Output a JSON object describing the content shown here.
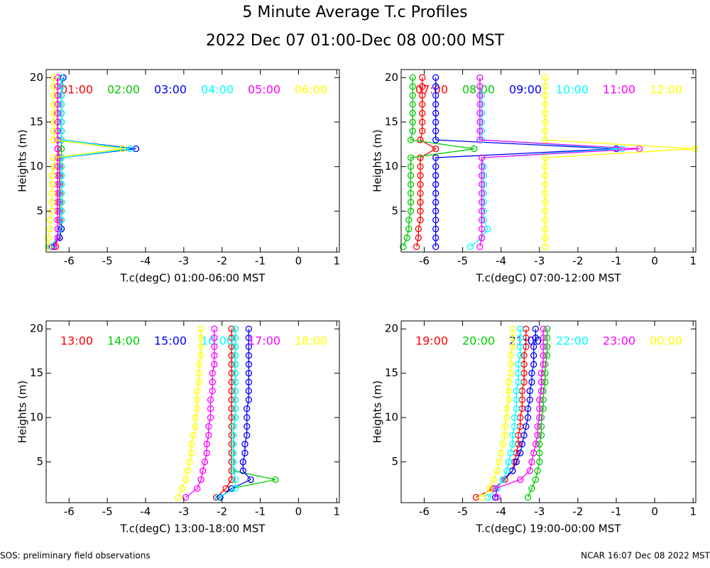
{
  "title": "5 Minute Average T.c Profiles",
  "subtitle": "2022 Dec 07 01:00-Dec 08 00:00 MST",
  "footer_left": "SOS: preliminary field observations",
  "footer_right": "NCAR 16:07 Dec 08 2022 MST",
  "chart_data": [
    {
      "type": "line",
      "xlabel": "T.c(degC) 01:00-06:00 MST",
      "ylabel": "Heights (m)",
      "xlim": [
        -6.6,
        1.07
      ],
      "ylim": [
        0.4,
        20.9
      ],
      "xticks": [
        -6,
        -5,
        -4,
        -3,
        -2,
        -1,
        0,
        1
      ],
      "yticks": [
        5,
        10,
        15,
        20
      ],
      "y": [
        1,
        2,
        3,
        4,
        5,
        6,
        7,
        8,
        9,
        10,
        11,
        12,
        13,
        14,
        15,
        16,
        17,
        18,
        19,
        20
      ],
      "series": [
        {
          "name": "01:00",
          "color": "#ff0000",
          "values": [
            -6.35,
            -6.3,
            -6.25,
            -6.25,
            -6.25,
            -6.25,
            -6.25,
            -6.25,
            -6.25,
            -6.25,
            -6.25,
            -6.3,
            -6.3,
            -6.3,
            -6.3,
            -6.3,
            -6.3,
            -6.3,
            -6.3,
            -6.3
          ]
        },
        {
          "name": "02:00",
          "color": "#00cc00",
          "values": [
            -6.5,
            -6.25,
            -6.2,
            -6.2,
            -6.2,
            -6.2,
            -6.2,
            -6.2,
            -6.2,
            -6.2,
            -6.2,
            -6.2,
            -6.2,
            -6.2,
            -6.2,
            -6.2,
            -6.2,
            -6.2,
            -6.2,
            -6.2
          ]
        },
        {
          "name": "03:00",
          "color": "#0000ff",
          "values": [
            -6.45,
            -6.25,
            -6.2,
            -6.2,
            -6.2,
            -6.2,
            -6.2,
            -6.2,
            -6.2,
            -6.2,
            -6.2,
            -4.25,
            -6.2,
            -6.2,
            -6.2,
            -6.2,
            -6.2,
            -6.2,
            -6.2,
            -6.15
          ]
        },
        {
          "name": "04:00",
          "color": "#00ffff",
          "values": [
            -6.5,
            -6.3,
            -6.25,
            -6.2,
            -6.2,
            -6.2,
            -6.2,
            -6.2,
            -6.2,
            -6.2,
            -6.2,
            -4.4,
            -6.2,
            -6.2,
            -6.2,
            -6.2,
            -6.2,
            -6.2,
            -6.2,
            -6.2
          ]
        },
        {
          "name": "05:00",
          "color": "#ff00ff",
          "values": [
            -6.4,
            -6.3,
            -6.3,
            -6.3,
            -6.3,
            -6.3,
            -6.3,
            -6.3,
            -6.3,
            -6.3,
            -6.3,
            -6.3,
            -6.3,
            -6.3,
            -6.3,
            -6.3,
            -6.3,
            -6.3,
            -6.3,
            -6.3
          ]
        },
        {
          "name": "06:00",
          "color": "#ffff00",
          "values": [
            -6.55,
            -6.55,
            -6.5,
            -6.5,
            -6.45,
            -6.45,
            -6.45,
            -6.45,
            -6.45,
            -6.4,
            -6.4,
            -4.6,
            -6.4,
            -6.4,
            -6.4,
            -6.4,
            -6.4,
            -6.4,
            -6.4,
            -6.4
          ]
        }
      ]
    },
    {
      "type": "line",
      "xlabel": "T.c(degC) 07:00-12:00 MST",
      "ylabel": "Heights (m)",
      "xlim": [
        -6.6,
        1.07
      ],
      "ylim": [
        0.4,
        20.9
      ],
      "xticks": [
        -6,
        -5,
        -4,
        -3,
        -2,
        -1,
        0,
        1
      ],
      "yticks": [
        5,
        10,
        15,
        20
      ],
      "y": [
        1,
        2,
        3,
        4,
        5,
        6,
        7,
        8,
        9,
        10,
        11,
        12,
        13,
        14,
        15,
        16,
        17,
        18,
        19,
        20
      ],
      "series": [
        {
          "name": "07:00",
          "color": "#ff0000",
          "values": [
            -6.2,
            -6.15,
            -6.15,
            -6.1,
            -6.1,
            -6.1,
            -6.1,
            -6.1,
            -6.1,
            -6.1,
            -6.1,
            -5.7,
            -6.1,
            -6.05,
            -6.05,
            -6.05,
            -6.05,
            -6.05,
            -6.05,
            -6.05
          ]
        },
        {
          "name": "08:00",
          "color": "#00cc00",
          "values": [
            -6.55,
            -6.45,
            -6.4,
            -6.4,
            -6.35,
            -6.35,
            -6.35,
            -6.35,
            -6.35,
            -6.35,
            -6.35,
            -4.7,
            -6.35,
            -6.3,
            -6.3,
            -6.3,
            -6.3,
            -6.3,
            -6.3,
            -6.3
          ]
        },
        {
          "name": "09:00",
          "color": "#0000ff",
          "values": [
            -5.7,
            -5.7,
            -5.7,
            -5.7,
            -5.7,
            -5.7,
            -5.7,
            -5.7,
            -5.7,
            -5.7,
            -5.7,
            -1.0,
            -5.7,
            -5.7,
            -5.7,
            -5.7,
            -5.7,
            -5.7,
            -5.7,
            -5.7
          ]
        },
        {
          "name": "10:00",
          "color": "#00ffff",
          "values": [
            -4.8,
            -4.5,
            -4.35,
            -4.45,
            -4.45,
            -4.45,
            -4.45,
            -4.45,
            -4.45,
            -4.45,
            -4.5,
            -0.85,
            -4.5,
            -4.5,
            -4.5,
            -4.5,
            -4.5,
            -4.5,
            -4.55,
            -4.55
          ]
        },
        {
          "name": "11:00",
          "color": "#ff00ff",
          "values": [
            -4.55,
            -4.5,
            -4.5,
            -4.5,
            -4.5,
            -4.5,
            -4.5,
            -4.5,
            -4.5,
            -4.5,
            -4.5,
            -0.4,
            -4.55,
            -4.55,
            -4.55,
            -4.55,
            -4.55,
            -4.55,
            -4.55,
            -4.55
          ]
        },
        {
          "name": "12:00",
          "color": "#ffff00",
          "values": [
            -2.85,
            -2.85,
            -2.85,
            -2.85,
            -2.85,
            -2.85,
            -2.85,
            -2.85,
            -2.85,
            -2.85,
            -2.85,
            1.05,
            -2.85,
            -2.85,
            -2.85,
            -2.85,
            -2.85,
            -2.85,
            -2.85,
            -2.85
          ]
        }
      ]
    },
    {
      "type": "line",
      "xlabel": "T.c(degC) 13:00-18:00 MST",
      "ylabel": "Heights (m)",
      "xlim": [
        -6.6,
        1.07
      ],
      "ylim": [
        0.4,
        20.9
      ],
      "xticks": [
        -6,
        -5,
        -4,
        -3,
        -2,
        -1,
        0,
        1
      ],
      "yticks": [
        5,
        10,
        15,
        20
      ],
      "y": [
        1,
        2,
        3,
        4,
        5,
        6,
        7,
        8,
        9,
        10,
        11,
        12,
        13,
        14,
        15,
        16,
        17,
        18,
        19,
        20
      ],
      "series": [
        {
          "name": "13:00",
          "color": "#ff0000",
          "values": [
            -2.15,
            -1.9,
            -1.75,
            -1.75,
            -1.75,
            -1.75,
            -1.75,
            -1.75,
            -1.75,
            -1.75,
            -1.75,
            -1.75,
            -1.75,
            -1.75,
            -1.75,
            -1.75,
            -1.75,
            -1.75,
            -1.75,
            -1.75
          ]
        },
        {
          "name": "14:00",
          "color": "#00cc00",
          "values": [
            -2.05,
            -1.75,
            -0.6,
            -1.7,
            -1.7,
            -1.7,
            -1.7,
            -1.7,
            -1.7,
            -1.65,
            -1.65,
            -1.65,
            -1.65,
            -1.65,
            -1.65,
            -1.65,
            -1.65,
            -1.65,
            -1.65,
            -1.65
          ]
        },
        {
          "name": "15:00",
          "color": "#0000ff",
          "values": [
            -2.05,
            -1.75,
            -1.25,
            -1.45,
            -1.45,
            -1.4,
            -1.4,
            -1.35,
            -1.35,
            -1.35,
            -1.35,
            -1.3,
            -1.3,
            -1.3,
            -1.3,
            -1.3,
            -1.3,
            -1.3,
            -1.3,
            -1.3
          ]
        },
        {
          "name": "16:00",
          "color": "#00ffff",
          "values": [
            -2.1,
            -1.65,
            -1.65,
            -1.7,
            -1.7,
            -1.7,
            -1.7,
            -1.7,
            -1.7,
            -1.65,
            -1.65,
            -1.65,
            -1.65,
            -1.65,
            -1.65,
            -1.65,
            -1.65,
            -1.65,
            -1.65,
            -1.65
          ]
        },
        {
          "name": "17:00",
          "color": "#ff00ff",
          "values": [
            -2.95,
            -2.65,
            -2.55,
            -2.5,
            -2.45,
            -2.4,
            -2.4,
            -2.35,
            -2.35,
            -2.3,
            -2.3,
            -2.3,
            -2.25,
            -2.25,
            -2.25,
            -2.2,
            -2.2,
            -2.2,
            -2.2,
            -2.2
          ]
        },
        {
          "name": "18:00",
          "color": "#ffff00",
          "values": [
            -3.15,
            -3.05,
            -2.95,
            -2.9,
            -2.85,
            -2.8,
            -2.8,
            -2.75,
            -2.7,
            -2.7,
            -2.65,
            -2.65,
            -2.65,
            -2.6,
            -2.6,
            -2.6,
            -2.55,
            -2.55,
            -2.55,
            -2.55
          ]
        }
      ]
    },
    {
      "type": "line",
      "xlabel": "T.c(degC) 19:00-00:00 MST",
      "ylabel": "Heights (m)",
      "xlim": [
        -6.6,
        1.07
      ],
      "ylim": [
        0.4,
        20.9
      ],
      "xticks": [
        -6,
        -5,
        -4,
        -3,
        -2,
        -1,
        0,
        1
      ],
      "yticks": [
        5,
        10,
        15,
        20
      ],
      "y": [
        1,
        2,
        3,
        4,
        5,
        6,
        7,
        8,
        9,
        10,
        11,
        12,
        13,
        14,
        15,
        16,
        17,
        18,
        19,
        20
      ],
      "series": [
        {
          "name": "19:00",
          "color": "#ff0000",
          "values": [
            -4.65,
            -4.2,
            -3.9,
            -3.7,
            -3.65,
            -3.6,
            -3.55,
            -3.55,
            -3.5,
            -3.5,
            -3.45,
            -3.45,
            -3.45,
            -3.4,
            -3.4,
            -3.4,
            -3.4,
            -3.35,
            -3.35,
            -3.35
          ]
        },
        {
          "name": "20:00",
          "color": "#00cc00",
          "values": [
            -3.3,
            -3.2,
            -3.1,
            -3.05,
            -3.0,
            -3.0,
            -3.0,
            -2.95,
            -2.95,
            -2.95,
            -2.9,
            -2.9,
            -2.9,
            -2.85,
            -2.85,
            -2.85,
            -2.8,
            -2.8,
            -2.8,
            -2.8
          ]
        },
        {
          "name": "21:00",
          "color": "#0000ff",
          "values": [
            -4.15,
            -4.1,
            -3.95,
            -3.7,
            -3.6,
            -3.5,
            -3.45,
            -3.4,
            -3.35,
            -3.3,
            -3.3,
            -3.25,
            -3.25,
            -3.2,
            -3.2,
            -3.15,
            -3.15,
            -3.15,
            -3.1,
            -3.1
          ]
        },
        {
          "name": "22:00",
          "color": "#00ffff",
          "values": [
            -4.35,
            -4.1,
            -3.95,
            -3.85,
            -3.8,
            -3.75,
            -3.7,
            -3.7,
            -3.65,
            -3.65,
            -3.6,
            -3.6,
            -3.6,
            -3.55,
            -3.55,
            -3.55,
            -3.5,
            -3.5,
            -3.5,
            -3.5
          ]
        },
        {
          "name": "23:00",
          "color": "#ff00ff",
          "values": [
            -4.1,
            -4.15,
            -3.5,
            -3.25,
            -3.2,
            -3.15,
            -3.1,
            -3.05,
            -3.05,
            -3.0,
            -3.0,
            -3.0,
            -2.95,
            -2.95,
            -2.95,
            -2.9,
            -2.9,
            -2.9,
            -2.9,
            -2.9
          ]
        },
        {
          "name": "00:00",
          "color": "#ffff00",
          "values": [
            -4.5,
            -4.3,
            -4.2,
            -4.1,
            -4.05,
            -4.0,
            -3.95,
            -3.9,
            -3.9,
            -3.85,
            -3.85,
            -3.8,
            -3.8,
            -3.8,
            -3.75,
            -3.75,
            -3.75,
            -3.7,
            -3.7,
            -3.7
          ]
        }
      ]
    }
  ]
}
